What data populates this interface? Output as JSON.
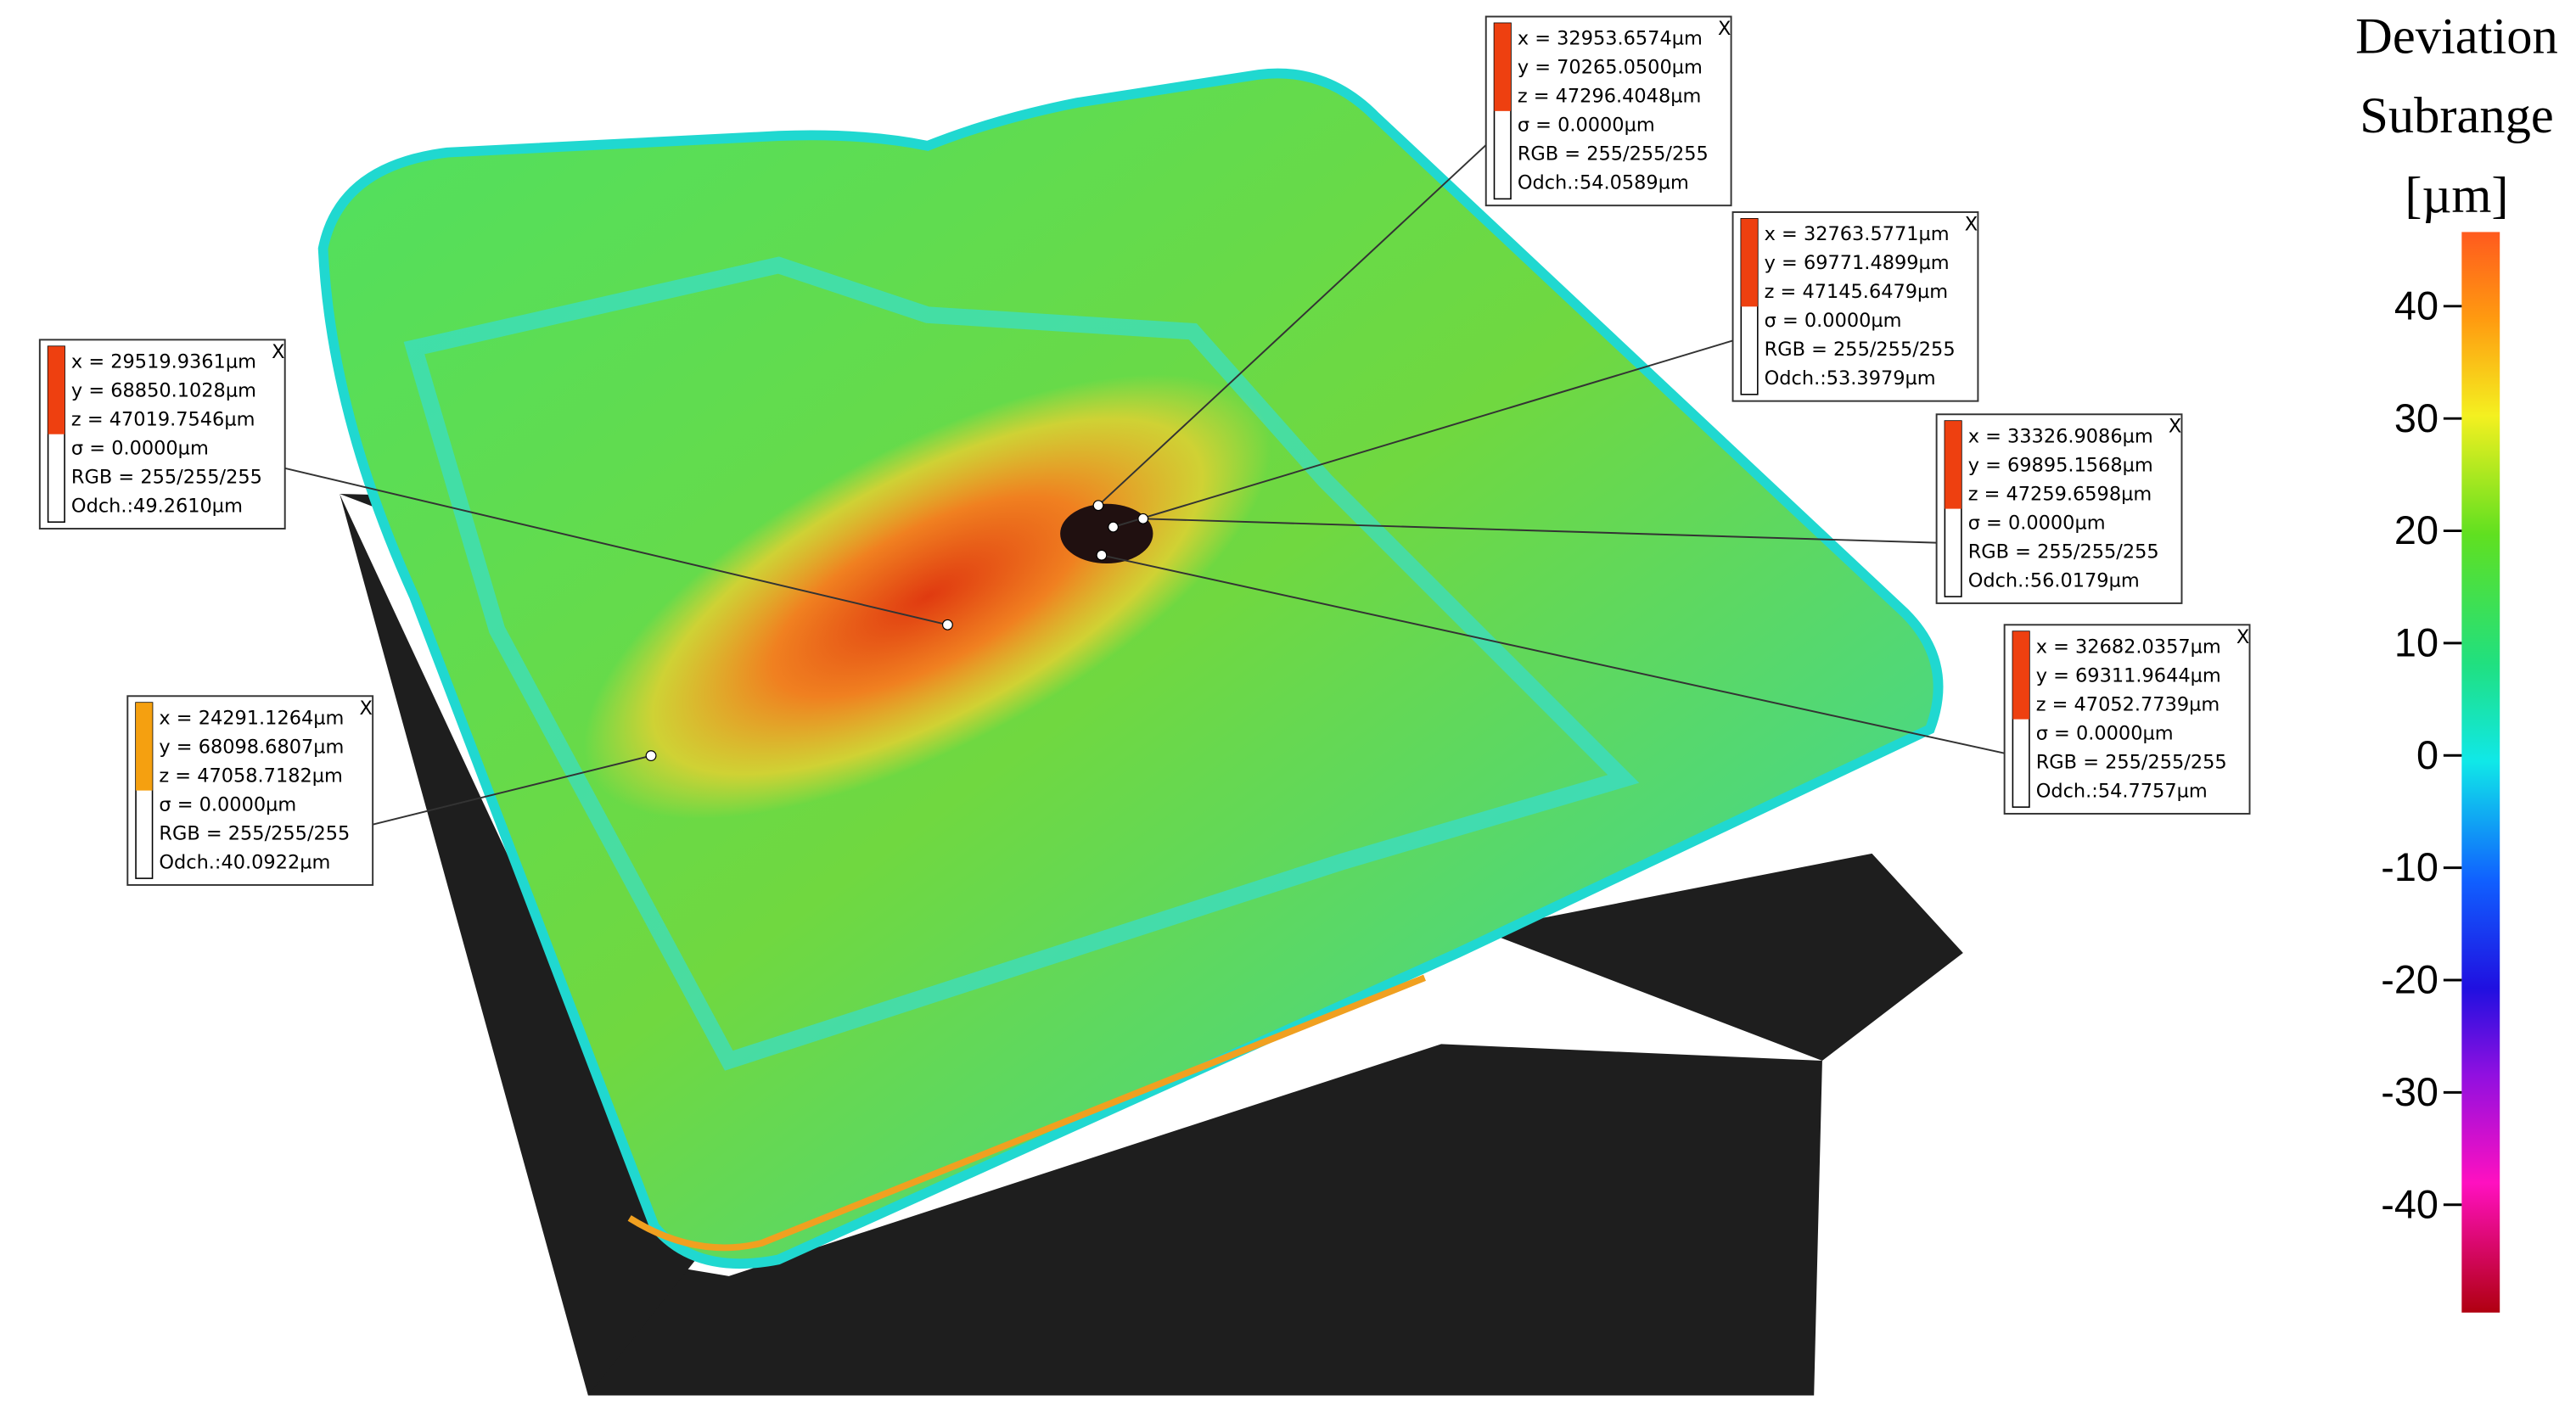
{
  "colorbar": {
    "title": [
      "Deviation",
      "Subrange",
      "[µm]"
    ],
    "range": [
      -49.6,
      46.6
    ],
    "ticks": [
      40,
      30,
      20,
      10,
      0,
      -10,
      -20,
      -30,
      -40
    ]
  },
  "annotations": [
    {
      "lines": [
        "x = 32953.6574µm",
        "y = 70265.0500µm",
        "z = 47296.4048µm",
        "σ = 0.0000µm",
        "RGB = 255/255/255",
        "Odch.:54.0589µm"
      ],
      "close": "X"
    },
    {
      "lines": [
        "x = 32763.5771µm",
        "y = 69771.4899µm",
        "z = 47145.6479µm",
        "σ = 0.0000µm",
        "RGB = 255/255/255",
        "Odch.:53.3979µm"
      ],
      "close": "X"
    },
    {
      "lines": [
        "x = 33326.9086µm",
        "y = 69895.1568µm",
        "z = 47259.6598µm",
        "σ = 0.0000µm",
        "RGB = 255/255/255",
        "Odch.:56.0179µm"
      ],
      "close": "X"
    },
    {
      "lines": [
        "x = 32682.0357µm",
        "y = 69311.9644µm",
        "z = 47052.7739µm",
        "σ = 0.0000µm",
        "RGB = 255/255/255",
        "Odch.:54.7757µm"
      ],
      "close": "X"
    },
    {
      "lines": [
        "x = 29519.9361µm",
        "y = 68850.1028µm",
        "z = 47019.7546µm",
        "σ = 0.0000µm",
        "RGB = 255/255/255",
        "Odch.:49.2610µm"
      ],
      "close": "X"
    },
    {
      "lines": [
        "x = 24291.1264µm",
        "y = 68098.6807µm",
        "z = 47058.7182µm",
        "σ = 0.0000µm",
        "RGB = 255/255/255",
        "Odch.:40.0922µm"
      ],
      "close": "X"
    }
  ]
}
